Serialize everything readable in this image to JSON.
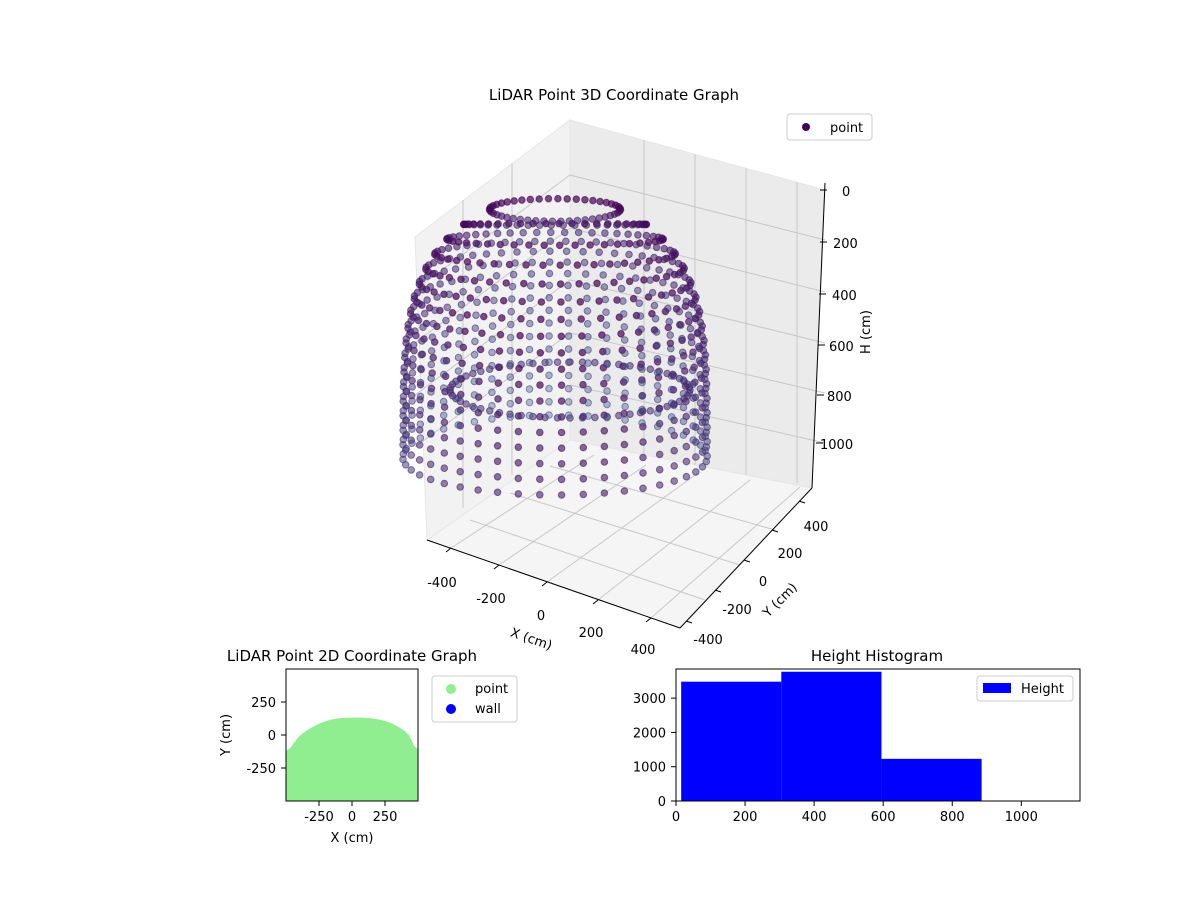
{
  "chart_data": [
    {
      "type": "scatter",
      "projection": "3d",
      "title": "LiDAR Point 3D Coordinate Graph",
      "xlabel": "X (cm)",
      "ylabel": "Y (cm)",
      "zlabel": "H (cm)",
      "xticks": [
        -400,
        -200,
        0,
        200,
        400
      ],
      "yticks": [
        -400,
        -200,
        0,
        200,
        400
      ],
      "zticks": [
        0,
        200,
        400,
        600,
        800,
        1000
      ],
      "xlim": [
        -500,
        500
      ],
      "ylim": [
        -500,
        500
      ],
      "zlim": [
        0,
        1100
      ],
      "z_inverted": true,
      "grid": true,
      "legend": {
        "position": "top-right",
        "entries": [
          {
            "label": "point",
            "color": "#440154"
          }
        ]
      },
      "series": [
        {
          "name": "point",
          "colormap": "viridis-depth",
          "color_near": "#3b528b",
          "color_far": "#440154",
          "shape": "dome-shell",
          "ring_radius": 450,
          "height_range": [
            0,
            1100
          ],
          "values_note": "dense point cloud"
        }
      ]
    },
    {
      "type": "scatter",
      "title": "LiDAR Point 2D Coordinate Graph",
      "xlabel": "X (cm)",
      "ylabel": "Y (cm)",
      "xticks": [
        -250,
        0,
        250
      ],
      "yticks": [
        -250,
        0,
        250
      ],
      "xlim": [
        -500,
        500
      ],
      "ylim": [
        -500,
        500
      ],
      "grid": false,
      "legend": {
        "position": "outside-right",
        "entries": [
          {
            "label": "point",
            "color": "#90ee90"
          },
          {
            "label": "wall",
            "color": "#0000ff"
          }
        ]
      },
      "series": [
        {
          "name": "point",
          "color": "#90ee90",
          "outline": [
            [
              -500,
              -500
            ],
            [
              -500,
              -120
            ],
            [
              -470,
              -100
            ],
            [
              -440,
              -60
            ],
            [
              -400,
              -10
            ],
            [
              -350,
              30
            ],
            [
              -300,
              60
            ],
            [
              -250,
              85
            ],
            [
              -200,
              105
            ],
            [
              -150,
              118
            ],
            [
              -100,
              126
            ],
            [
              -50,
              130
            ],
            [
              0,
              132
            ],
            [
              50,
              132
            ],
            [
              100,
              130
            ],
            [
              150,
              126
            ],
            [
              200,
              118
            ],
            [
              250,
              106
            ],
            [
              300,
              88
            ],
            [
              350,
              62
            ],
            [
              400,
              30
            ],
            [
              430,
              0
            ],
            [
              450,
              -40
            ],
            [
              470,
              -80
            ],
            [
              500,
              -110
            ],
            [
              500,
              -500
            ]
          ]
        },
        {
          "name": "wall",
          "color": "#0000ff",
          "points": []
        }
      ]
    },
    {
      "type": "bar",
      "subtype": "histogram",
      "title": "Height Histogram",
      "xlabel": "",
      "ylabel": "",
      "xticks": [
        0,
        200,
        400,
        600,
        800,
        1000
      ],
      "yticks": [
        0,
        1000,
        2000,
        3000
      ],
      "xlim": [
        0,
        1170
      ],
      "ylim": [
        0,
        3850
      ],
      "legend": {
        "position": "top-right",
        "entries": [
          {
            "label": "Height",
            "color": "#0000ff"
          }
        ]
      },
      "series": [
        {
          "name": "Height",
          "color": "#0000ff",
          "bins": [
            {
              "x0": 15,
              "x1": 305,
              "value": 3480
            },
            {
              "x0": 305,
              "x1": 595,
              "value": 3770
            },
            {
              "x0": 595,
              "x1": 885,
              "value": 1230
            }
          ]
        }
      ]
    }
  ]
}
